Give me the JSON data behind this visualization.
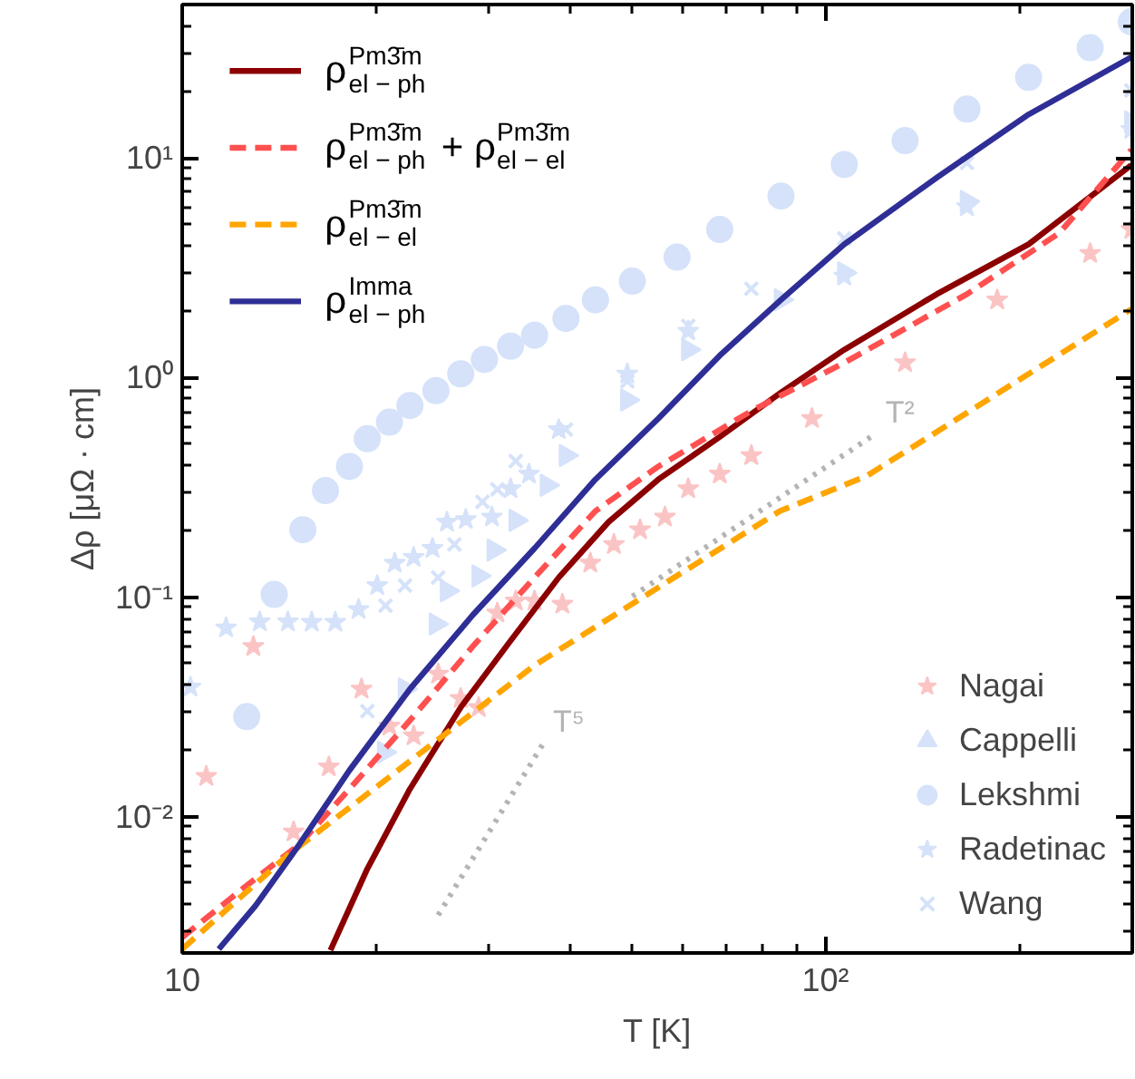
{
  "chart_data": {
    "type": "line",
    "xlabel": "T [K]",
    "ylabel": "Δρ [μΩ · cm]",
    "log": "xy",
    "grid": false,
    "legend": [
      "top left",
      "bottom right"
    ],
    "xlim": [
      10,
      300
    ],
    "ylim": [
      0.0024,
      50
    ],
    "xticks": [
      10,
      {
        "value": 100,
        "label": "10²"
      }
    ],
    "yticks": [
      {
        "value": 0.01,
        "label": "10⁻²"
      },
      {
        "value": 0.1,
        "label": "10⁻¹"
      },
      {
        "value": 1,
        "label": "10⁰"
      },
      {
        "value": 10,
        "label": "10¹"
      }
    ],
    "annotations": [
      "T⁵",
      "T²"
    ],
    "series": [
      {
        "name": "Nagai",
        "type": "scatter",
        "marker": "star",
        "color": "#fbc4c4",
        "x": [
          10.9,
          12.9,
          14.9,
          16.9,
          19.0,
          21.0,
          22.9,
          25.0,
          27.1,
          28.9,
          30.9,
          33.0,
          35.3,
          39.0,
          43.1,
          46.9,
          51.5,
          56.3,
          61.2,
          68.5,
          76.7,
          95.3,
          133,
          185,
          258,
          299
        ],
        "values": [
          0.0153,
          0.0597,
          0.00855,
          0.0169,
          0.0382,
          0.0259,
          0.0234,
          0.0447,
          0.0346,
          0.0315,
          0.0848,
          0.0962,
          0.0962,
          0.093,
          0.143,
          0.174,
          0.203,
          0.232,
          0.312,
          0.364,
          0.442,
          0.652,
          1.17,
          2.26,
          3.68,
          4.73
        ]
      },
      {
        "name": "Cappelli",
        "type": "scatter",
        "marker": "triangle",
        "color": "#d5e2fa",
        "x": [
          20.6,
          22.2,
          24.8,
          25.8,
          28.9,
          30.5,
          33.0,
          36.9,
          39.5,
          49.2,
          61.2,
          85.3,
          107,
          166,
          299
        ],
        "values": [
          0.0197,
          0.0382,
          0.0755,
          0.107,
          0.125,
          0.164,
          0.224,
          0.324,
          0.442,
          0.792,
          1.34,
          2.26,
          3.0,
          6.34,
          14.6
        ]
      },
      {
        "name": "Lekshmi",
        "type": "scatter",
        "marker": "circle",
        "color": "#d5e2fa",
        "x": [
          12.6,
          13.9,
          15.4,
          16.7,
          18.2,
          19.4,
          21.0,
          22.6,
          24.8,
          27.1,
          29.5,
          32.4,
          35.3,
          39.5,
          43.9,
          50.1,
          58.8,
          68.5,
          85.3,
          107,
          133,
          166,
          207,
          258,
          299
        ],
        "values": [
          0.0286,
          0.103,
          0.203,
          0.306,
          0.394,
          0.527,
          0.627,
          0.747,
          0.873,
          1.04,
          1.21,
          1.39,
          1.56,
          1.86,
          2.26,
          2.75,
          3.54,
          4.73,
          6.71,
          9.34,
          12.0,
          16.7,
          23.3,
          31.8,
          41.7
        ]
      },
      {
        "name": "Radetinac",
        "type": "scatter",
        "marker": "star",
        "color": "#d5e2fa",
        "x": [
          10.3,
          11.7,
          13.2,
          14.6,
          15.9,
          17.3,
          18.8,
          20.1,
          21.4,
          22.9,
          24.5,
          25.8,
          27.6,
          30.3,
          32.4,
          34.6,
          38.5,
          49.2,
          61.2,
          107,
          166,
          299
        ],
        "values": [
          0.039,
          0.0726,
          0.0773,
          0.0773,
          0.077,
          0.077,
          0.088,
          0.113,
          0.143,
          0.152,
          0.167,
          0.22,
          0.226,
          0.232,
          0.312,
          0.364,
          0.58,
          1.04,
          1.63,
          2.9,
          6.0,
          13.5
        ]
      },
      {
        "name": "Wang",
        "type": "scatter",
        "marker": "cross",
        "color": "#d5e2fa",
        "x": [
          19.4,
          20.7,
          22.2,
          25.0,
          26.5,
          29.3,
          30.9,
          33.0,
          39.5,
          49.2,
          61.2,
          76.7,
          107,
          166,
          299
        ],
        "values": [
          0.0303,
          0.0916,
          0.113,
          0.123,
          0.174,
          0.272,
          0.31,
          0.417,
          0.58,
          0.962,
          1.72,
          2.54,
          4.3,
          9.5,
          20.3
        ]
      },
      {
        "line_style": "dotted",
        "color": "#b4b4b4",
        "x": [
          25.0,
          36.5
        ],
        "values": [
          0.00357,
          0.0218
        ]
      },
      {
        "line_style": "dotted",
        "color": "#b4b4b4",
        "x": [
          50.1,
          120
        ],
        "values": [
          0.101,
          0.558
        ]
      },
      {
        "name": "ρ$^{Pm3̄m}$$_{el − ph}$",
        "line_style": "solid",
        "color": "#8b0000",
        "x": [
          17.0,
          19.4,
          22.6,
          27.1,
          32.4,
          38.5,
          46.0,
          55.0,
          68.5,
          85.3,
          107,
          149,
          207,
          299
        ],
        "values": [
          0.00247,
          0.0058,
          0.0134,
          0.0315,
          0.0634,
          0.123,
          0.22,
          0.344,
          0.537,
          0.855,
          1.34,
          2.4,
          4.05,
          9.3
        ]
      },
      {
        "name": "ρ$^{Pm3̄m}$$_{el − ph}$ + ρ$^{Pm3̄m}$$_{el − el}$",
        "line_style": "dashed",
        "color": "#ff5050",
        "x": [
          10,
          12.5,
          15.2,
          18.2,
          22.6,
          28.3,
          35.3,
          43.9,
          55.0,
          76.7,
          107,
          166,
          231,
          299
        ],
        "values": [
          0.00283,
          0.00478,
          0.00747,
          0.0134,
          0.0275,
          0.0597,
          0.123,
          0.247,
          0.394,
          0.705,
          1.17,
          2.4,
          4.55,
          10.9
        ]
      },
      {
        "name": "ρ$^{Pm3̄m}$$_{el − el}$",
        "line_style": "dashed",
        "color": "#ffa500",
        "x": [
          10,
          14.6,
          35.3,
          85,
          116,
          299
        ],
        "values": [
          0.0025,
          0.0067,
          0.049,
          0.247,
          0.357,
          2.05
        ]
      },
      {
        "name": "ρ$^{Imma}$$_{el − ph}$",
        "line_style": "solid",
        "color": "#2e2e96",
        "x": [
          11.4,
          13.0,
          15.2,
          18.2,
          22.6,
          28.3,
          35.3,
          43.9,
          55,
          68.5,
          85.3,
          107,
          149,
          207,
          299
        ],
        "values": [
          0.0025,
          0.00394,
          0.00747,
          0.0163,
          0.0382,
          0.083,
          0.167,
          0.344,
          0.652,
          1.26,
          2.26,
          4.05,
          8.15,
          15.8,
          28.8
        ]
      }
    ]
  }
}
